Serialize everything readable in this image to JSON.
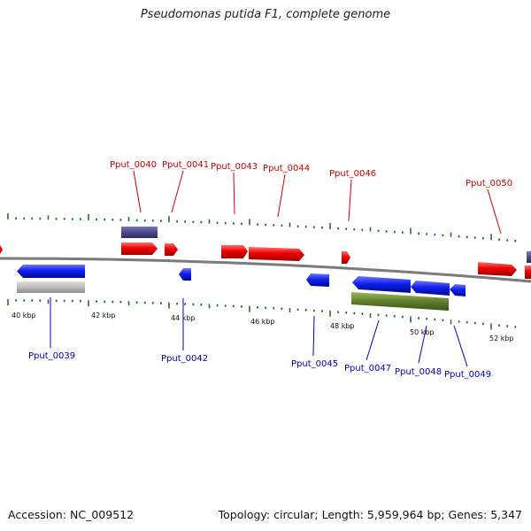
{
  "title": "Pseudomonas putida F1, complete genome",
  "footer": {
    "accession": "Accession: NC_009512",
    "summary": "Topology: circular; Length: 5,959,964 bp; Genes: 5,347"
  },
  "colors": {
    "forward_gene": "#ee0000",
    "reverse_gene": "#0a14e6",
    "forward_label": "#cc0000",
    "reverse_label": "#0000bb",
    "backbone": "#7a7a7a",
    "tick_major": "#1a8a1a",
    "tick_minor": "#2e6b2e",
    "feature_purple": "#4c4a8c",
    "feature_grey": "#b8b8b8",
    "feature_olive": "#5a7a2a"
  },
  "axis": {
    "labels": [
      "40 kbp",
      "42 kbp",
      "44 kbp",
      "46 kbp",
      "48 kbp",
      "50 kbp",
      "52 kbp"
    ]
  },
  "genes_forward": [
    {
      "name": "Pput_0040"
    },
    {
      "name": "Pput_0041"
    },
    {
      "name": "Pput_0043"
    },
    {
      "name": "Pput_0044"
    },
    {
      "name": "Pput_0046"
    },
    {
      "name": "Pput_0050"
    }
  ],
  "genes_reverse": [
    {
      "name": "Pput_0039"
    },
    {
      "name": "Pput_0042"
    },
    {
      "name": "Pput_0045"
    },
    {
      "name": "Pput_0047"
    },
    {
      "name": "Pput_0048"
    },
    {
      "name": "Pput_0049"
    }
  ]
}
